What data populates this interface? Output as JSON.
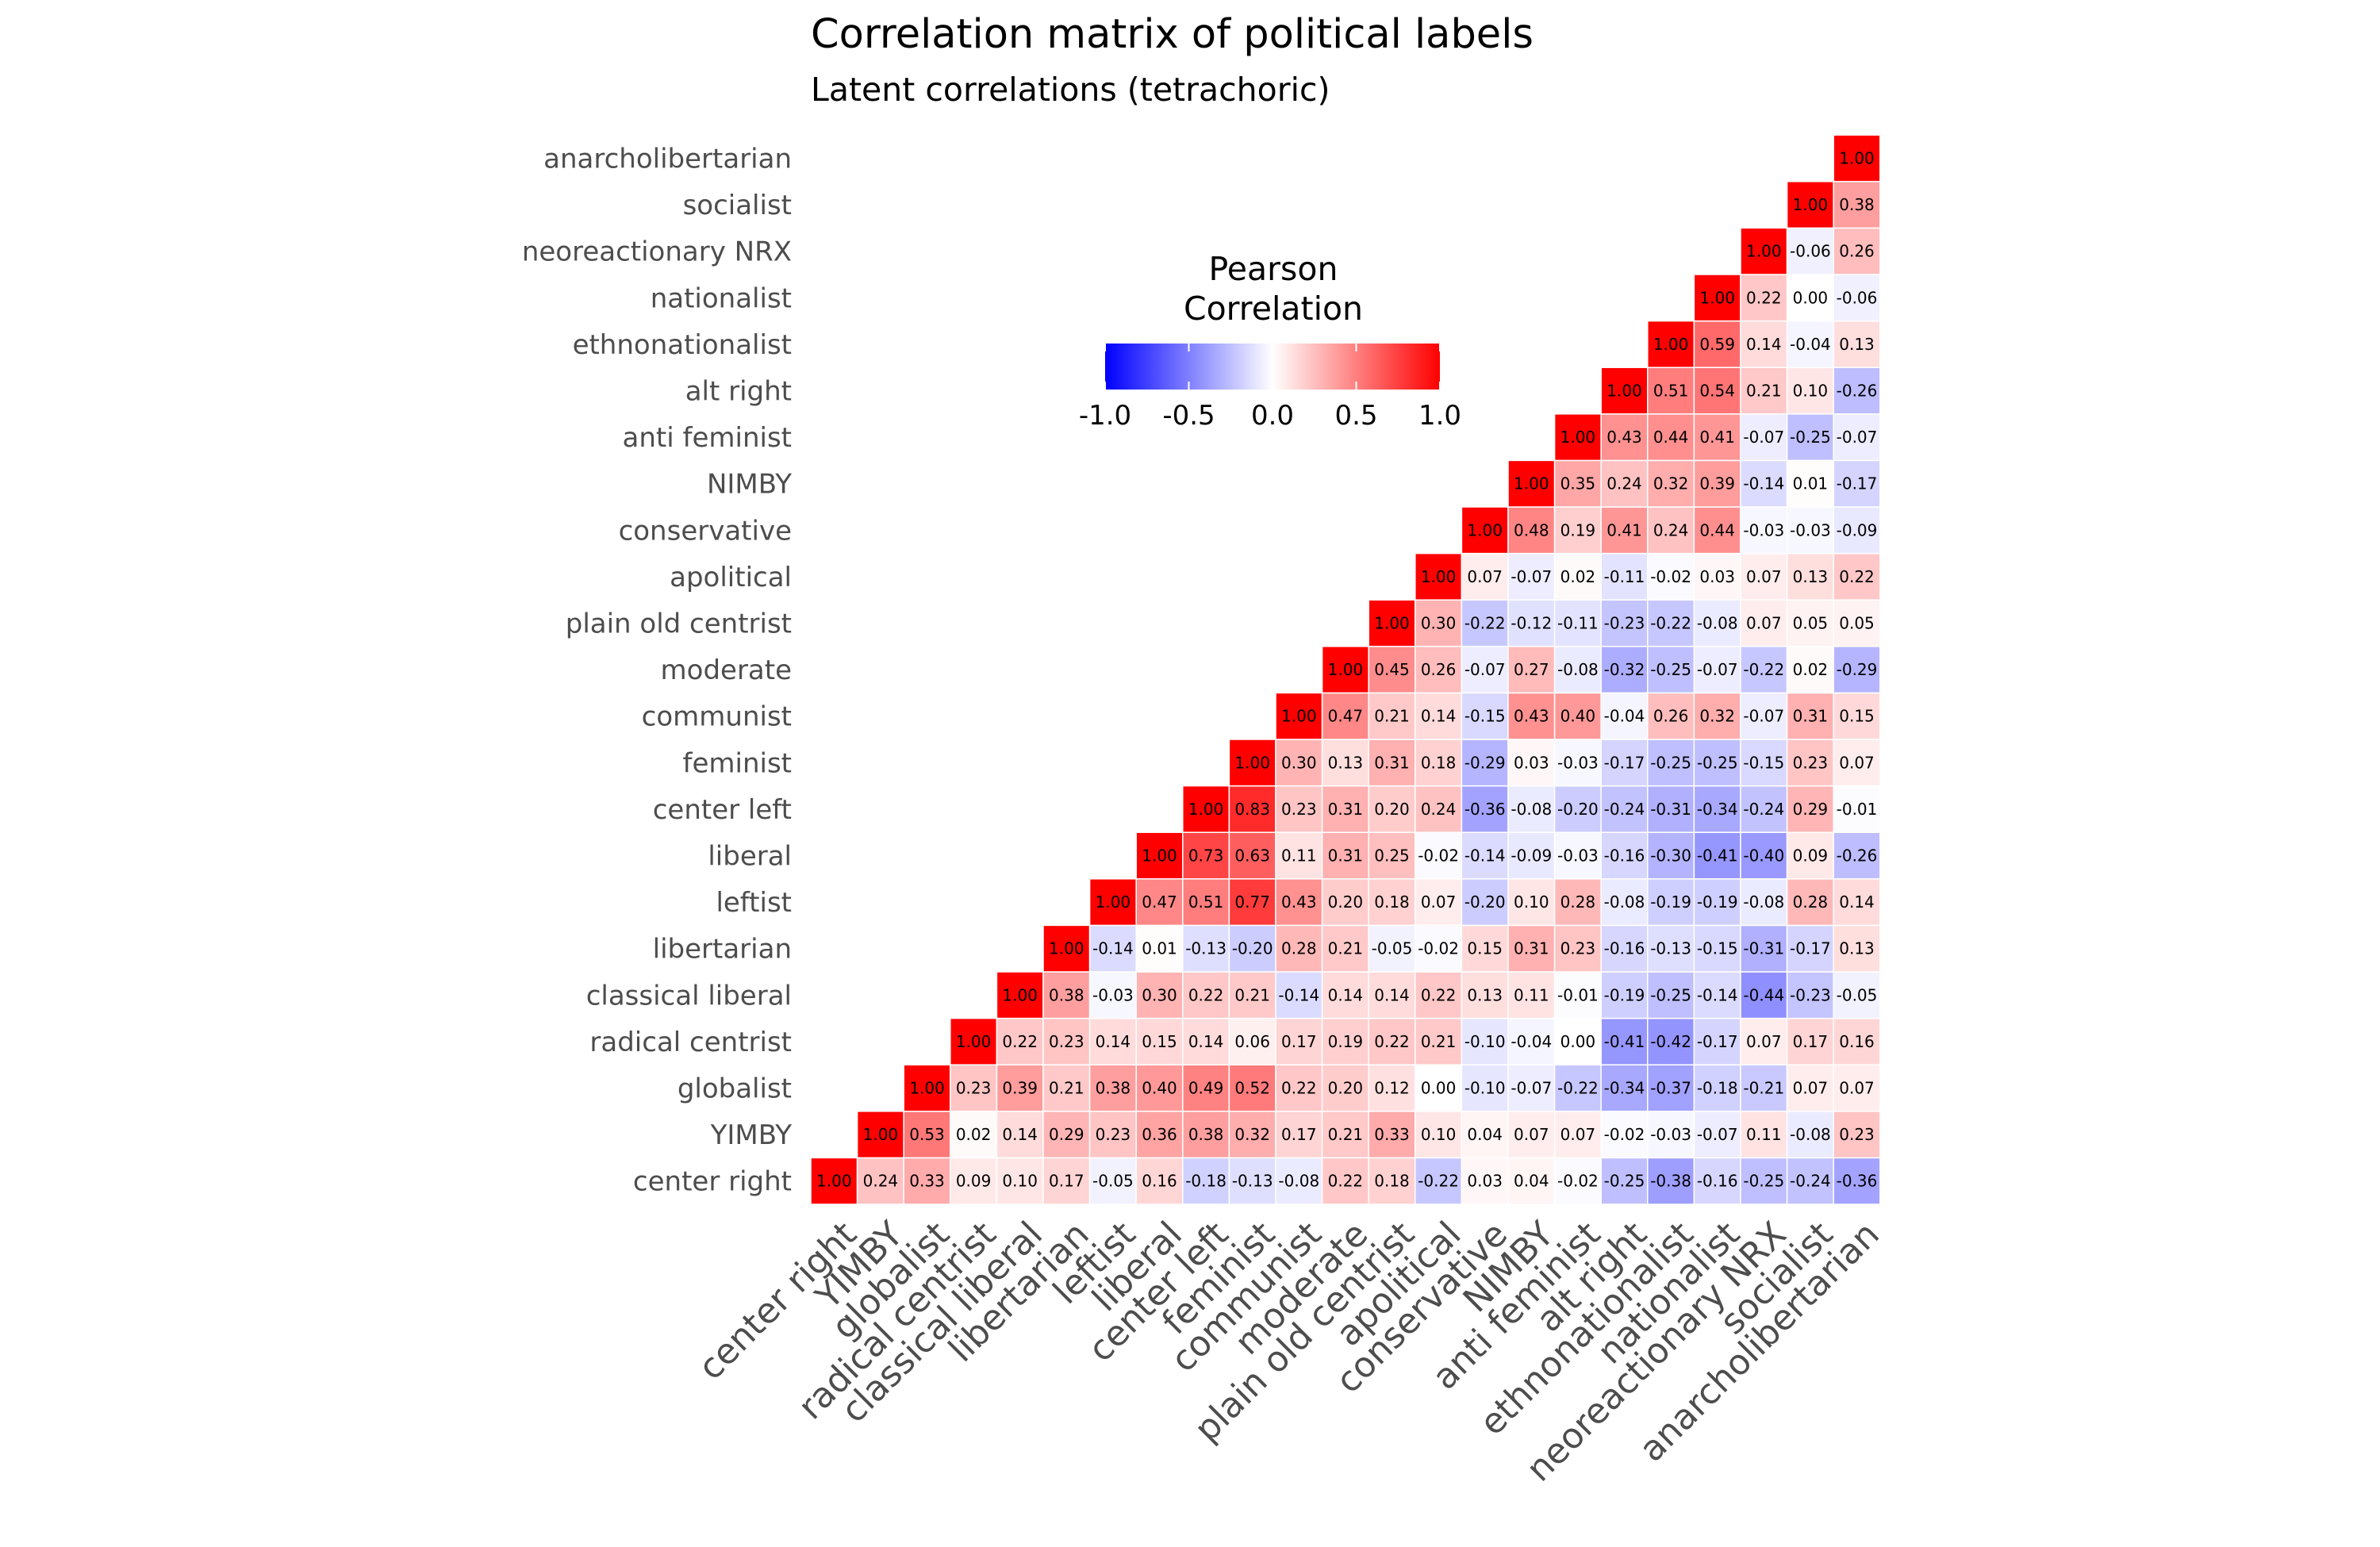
{
  "chart_data": {
    "type": "heatmap",
    "title": "Correlation matrix of political labels",
    "subtitle": "Latent correlations (tetrachoric)",
    "labels": [
      "center right",
      "YIMBY",
      "globalist",
      "radical centrist",
      "classical liberal",
      "libertarian",
      "leftist",
      "liberal",
      "center left",
      "feminist",
      "communist",
      "moderate",
      "plain old centrist",
      "apolitical",
      "conservative",
      "NIMBY",
      "anti feminist",
      "alt right",
      "ethnonationalist",
      "nationalist",
      "neoreactionary NRX",
      "socialist",
      "anarcholibertarian"
    ],
    "value_format": "2 decimals",
    "legend": {
      "title_line1": "Pearson",
      "title_line2": "Correlation",
      "ticks": [
        "-1.0",
        "-0.5",
        "0.0",
        "0.5",
        "1.0"
      ],
      "tick_values": [
        -1.0,
        -0.5,
        0.0,
        0.5,
        1.0
      ],
      "low_color": "#0000ff",
      "mid_color": "#ffffff",
      "high_color": "#ff0000",
      "placement": "inside upper-left of the triangle"
    },
    "color_range": [
      -1,
      1
    ],
    "upper_triangle": true,
    "matrix": [
      [
        1.0,
        0.24,
        0.33,
        0.09,
        0.1,
        0.17,
        -0.05,
        0.16,
        -0.18,
        -0.13,
        -0.08,
        0.22,
        0.18,
        -0.22,
        0.03,
        0.04,
        -0.02,
        -0.25,
        -0.38,
        -0.16,
        -0.25,
        -0.24,
        -0.36
      ],
      [
        null,
        1.0,
        0.53,
        0.02,
        0.14,
        0.29,
        0.23,
        0.36,
        0.38,
        0.32,
        0.17,
        0.21,
        0.33,
        0.1,
        0.04,
        0.07,
        0.07,
        -0.02,
        -0.03,
        -0.07,
        0.11,
        -0.08,
        0.23
      ],
      [
        null,
        null,
        1.0,
        0.23,
        0.39,
        0.21,
        0.38,
        0.4,
        0.49,
        0.52,
        0.22,
        0.2,
        0.12,
        0.0,
        -0.1,
        -0.07,
        -0.22,
        -0.34,
        -0.37,
        -0.18,
        -0.21,
        0.07,
        0.07
      ],
      [
        null,
        null,
        null,
        1.0,
        0.22,
        0.23,
        0.14,
        0.15,
        0.14,
        0.06,
        0.17,
        0.19,
        0.22,
        0.21,
        -0.1,
        -0.04,
        0.0,
        -0.41,
        -0.42,
        -0.17,
        0.07,
        0.17,
        0.16
      ],
      [
        null,
        null,
        null,
        null,
        1.0,
        0.38,
        -0.03,
        0.3,
        0.22,
        0.21,
        -0.14,
        0.14,
        0.14,
        0.22,
        0.13,
        0.11,
        -0.01,
        -0.19,
        -0.25,
        -0.14,
        -0.44,
        -0.23,
        -0.05
      ],
      [
        null,
        null,
        null,
        null,
        null,
        1.0,
        -0.14,
        0.01,
        -0.13,
        -0.2,
        0.28,
        0.21,
        -0.05,
        -0.02,
        0.15,
        0.31,
        0.23,
        -0.16,
        -0.13,
        -0.15,
        -0.31,
        -0.17,
        0.13
      ],
      [
        null,
        null,
        null,
        null,
        null,
        null,
        1.0,
        0.47,
        0.51,
        0.77,
        0.43,
        0.2,
        0.18,
        0.07,
        -0.2,
        0.1,
        0.28,
        -0.08,
        -0.19,
        -0.19,
        -0.08,
        0.28,
        0.14
      ],
      [
        null,
        null,
        null,
        null,
        null,
        null,
        null,
        1.0,
        0.73,
        0.63,
        0.11,
        0.31,
        0.25,
        -0.02,
        -0.14,
        -0.09,
        -0.03,
        -0.16,
        -0.3,
        -0.41,
        -0.4,
        0.09,
        -0.26
      ],
      [
        null,
        null,
        null,
        null,
        null,
        null,
        null,
        null,
        1.0,
        0.83,
        0.23,
        0.31,
        0.2,
        0.24,
        -0.36,
        -0.08,
        -0.2,
        -0.24,
        -0.31,
        -0.34,
        -0.24,
        0.29,
        -0.01
      ],
      [
        null,
        null,
        null,
        null,
        null,
        null,
        null,
        null,
        null,
        1.0,
        0.3,
        0.13,
        0.31,
        0.18,
        -0.29,
        0.03,
        -0.03,
        -0.17,
        -0.25,
        -0.25,
        -0.15,
        0.23,
        0.07
      ],
      [
        null,
        null,
        null,
        null,
        null,
        null,
        null,
        null,
        null,
        null,
        1.0,
        0.47,
        0.21,
        0.14,
        -0.15,
        0.43,
        0.4,
        -0.04,
        0.26,
        0.32,
        -0.07,
        0.31,
        0.15
      ],
      [
        null,
        null,
        null,
        null,
        null,
        null,
        null,
        null,
        null,
        null,
        null,
        1.0,
        0.45,
        0.26,
        -0.07,
        0.27,
        -0.08,
        -0.32,
        -0.25,
        -0.07,
        -0.22,
        0.02,
        -0.29
      ],
      [
        null,
        null,
        null,
        null,
        null,
        null,
        null,
        null,
        null,
        null,
        null,
        null,
        1.0,
        0.3,
        -0.22,
        -0.12,
        -0.11,
        -0.23,
        -0.22,
        -0.08,
        0.07,
        0.05,
        0.05
      ],
      [
        null,
        null,
        null,
        null,
        null,
        null,
        null,
        null,
        null,
        null,
        null,
        null,
        null,
        1.0,
        0.07,
        -0.07,
        0.02,
        -0.11,
        -0.02,
        0.03,
        0.07,
        0.13,
        0.22
      ],
      [
        null,
        null,
        null,
        null,
        null,
        null,
        null,
        null,
        null,
        null,
        null,
        null,
        null,
        null,
        1.0,
        0.48,
        0.19,
        0.41,
        0.24,
        0.44,
        -0.03,
        -0.03,
        -0.09
      ],
      [
        null,
        null,
        null,
        null,
        null,
        null,
        null,
        null,
        null,
        null,
        null,
        null,
        null,
        null,
        null,
        1.0,
        0.35,
        0.24,
        0.32,
        0.39,
        -0.14,
        0.01,
        -0.17
      ],
      [
        null,
        null,
        null,
        null,
        null,
        null,
        null,
        null,
        null,
        null,
        null,
        null,
        null,
        null,
        null,
        null,
        1.0,
        0.43,
        0.44,
        0.41,
        -0.07,
        -0.25,
        -0.07
      ],
      [
        null,
        null,
        null,
        null,
        null,
        null,
        null,
        null,
        null,
        null,
        null,
        null,
        null,
        null,
        null,
        null,
        null,
        1.0,
        0.51,
        0.54,
        0.21,
        0.1,
        -0.26
      ],
      [
        null,
        null,
        null,
        null,
        null,
        null,
        null,
        null,
        null,
        null,
        null,
        null,
        null,
        null,
        null,
        null,
        null,
        null,
        1.0,
        0.59,
        0.14,
        -0.04,
        0.13
      ],
      [
        null,
        null,
        null,
        null,
        null,
        null,
        null,
        null,
        null,
        null,
        null,
        null,
        null,
        null,
        null,
        null,
        null,
        null,
        null,
        1.0,
        0.22,
        0.0,
        -0.06
      ],
      [
        null,
        null,
        null,
        null,
        null,
        null,
        null,
        null,
        null,
        null,
        null,
        null,
        null,
        null,
        null,
        null,
        null,
        null,
        null,
        null,
        1.0,
        -0.06,
        0.26
      ],
      [
        null,
        null,
        null,
        null,
        null,
        null,
        null,
        null,
        null,
        null,
        null,
        null,
        null,
        null,
        null,
        null,
        null,
        null,
        null,
        null,
        null,
        1.0,
        0.38
      ],
      [
        null,
        null,
        null,
        null,
        null,
        null,
        null,
        null,
        null,
        null,
        null,
        null,
        null,
        null,
        null,
        null,
        null,
        null,
        null,
        null,
        null,
        null,
        1.0
      ]
    ]
  }
}
